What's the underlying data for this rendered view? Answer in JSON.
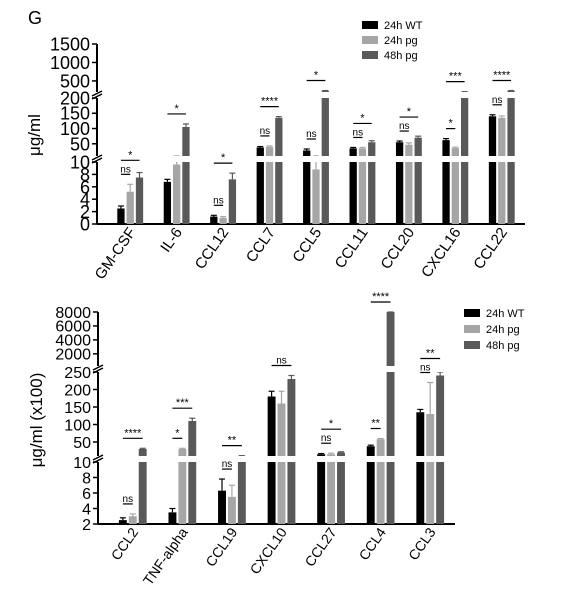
{
  "panel_label": "G",
  "chart_data": [
    {
      "type": "bar",
      "ylabel": "μg/ml",
      "categories": [
        "GM-CSF",
        "IL-6",
        "CCL12",
        "CCL7",
        "CCL5",
        "CCL11",
        "CCL20",
        "CXCL16",
        "CCL22"
      ],
      "series": [
        {
          "name": "24h WT",
          "color": "#000000",
          "values": [
            2.5,
            6.8,
            1.2,
            38,
            28,
            35,
            55,
            62,
            140
          ],
          "errors": [
            0.4,
            0.4,
            0.2,
            3,
            5,
            3,
            4,
            5,
            5
          ]
        },
        {
          "name": "24h pg",
          "color": "#a6a6a6",
          "values": [
            5.2,
            9.6,
            1.0,
            40,
            8.8,
            35,
            47,
            36,
            135
          ],
          "errors": [
            1.2,
            0.5,
            0.2,
            3,
            1.5,
            3,
            6,
            3,
            6
          ]
        },
        {
          "name": "48h pg",
          "color": "#595959",
          "values": [
            7.5,
            105,
            7.2,
            135,
            230,
            55,
            70,
            200,
            230
          ],
          "errors": [
            0.8,
            10,
            1.0,
            4,
            10,
            5,
            5,
            10,
            10
          ]
        }
      ],
      "significance": [
        {
          "category": 0,
          "pair": "12",
          "label": "ns"
        },
        {
          "category": 0,
          "pair": "13",
          "label": "*"
        },
        {
          "category": 1,
          "pair": "13",
          "label": "*"
        },
        {
          "category": 2,
          "pair": "12",
          "label": "ns"
        },
        {
          "category": 2,
          "pair": "13",
          "label": "*"
        },
        {
          "category": 3,
          "pair": "12",
          "label": "ns"
        },
        {
          "category": 3,
          "pair": "13",
          "label": "****"
        },
        {
          "category": 4,
          "pair": "12",
          "label": "ns"
        },
        {
          "category": 4,
          "pair": "13",
          "label": "*"
        },
        {
          "category": 5,
          "pair": "12",
          "label": "ns"
        },
        {
          "category": 5,
          "pair": "13",
          "label": "*"
        },
        {
          "category": 6,
          "pair": "12",
          "label": "ns"
        },
        {
          "category": 6,
          "pair": "13",
          "label": "*"
        },
        {
          "category": 7,
          "pair": "12",
          "label": "*"
        },
        {
          "category": 7,
          "pair": "13",
          "label": "***"
        },
        {
          "category": 8,
          "pair": "12",
          "label": "ns"
        },
        {
          "category": 8,
          "pair": "13",
          "label": "****"
        }
      ],
      "y_segments": [
        {
          "range": [
            0,
            10
          ],
          "ticks": [
            0,
            2,
            4,
            6,
            8,
            10
          ]
        },
        {
          "range": [
            10,
            200
          ],
          "ticks": [
            10,
            50,
            100,
            150,
            200
          ]
        },
        {
          "range": [
            200,
            1500
          ],
          "ticks": [
            500,
            1000,
            1500
          ]
        }
      ],
      "legend_position": "top-right"
    },
    {
      "type": "bar",
      "ylabel": "μg/ml (x100)",
      "categories": [
        "CCL2",
        "TNF-alpha",
        "CCL19",
        "CXCL10",
        "CCL27",
        "CCL4",
        "CCL3"
      ],
      "series": [
        {
          "name": "24h WT",
          "color": "#000000",
          "values": [
            2.5,
            3.5,
            6.3,
            180,
            15,
            38,
            135
          ],
          "errors": [
            0.3,
            0.5,
            1.5,
            15,
            2,
            3,
            8
          ]
        },
        {
          "name": "24h pg",
          "color": "#a6a6a6",
          "values": [
            3.0,
            30,
            5.5,
            160,
            15,
            58,
            130
          ],
          "errors": [
            0.3,
            2,
            1.5,
            35,
            3,
            2,
            90
          ]
        },
        {
          "name": "48h pg",
          "color": "#595959",
          "values": [
            30,
            110,
            10.5,
            230,
            20,
            8500,
            240
          ],
          "errors": [
            2,
            8,
            0.5,
            10,
            2,
            150,
            10
          ]
        }
      ],
      "significance": [
        {
          "category": 0,
          "pair": "12",
          "label": "ns"
        },
        {
          "category": 0,
          "pair": "13",
          "label": "****"
        },
        {
          "category": 1,
          "pair": "12",
          "label": "*"
        },
        {
          "category": 1,
          "pair": "13",
          "label": "***"
        },
        {
          "category": 2,
          "pair": "12",
          "label": "ns"
        },
        {
          "category": 2,
          "pair": "13",
          "label": "**"
        },
        {
          "category": 3,
          "pair": "13",
          "label": "ns"
        },
        {
          "category": 4,
          "pair": "12",
          "label": "ns"
        },
        {
          "category": 4,
          "pair": "13",
          "label": "*"
        },
        {
          "category": 5,
          "pair": "12",
          "label": "**"
        },
        {
          "category": 5,
          "pair": "13",
          "label": "****"
        },
        {
          "category": 6,
          "pair": "12",
          "label": "ns"
        },
        {
          "category": 6,
          "pair": "13",
          "label": "**"
        }
      ],
      "y_segments": [
        {
          "range": [
            2,
            10
          ],
          "ticks": [
            2,
            4,
            6,
            8,
            10
          ]
        },
        {
          "range": [
            10,
            250
          ],
          "ticks": [
            10,
            50,
            100,
            150,
            200,
            250
          ]
        },
        {
          "range": [
            250,
            8000
          ],
          "ticks": [
            2000,
            4000,
            6000,
            8000
          ]
        }
      ],
      "legend_position": "top-right"
    }
  ]
}
